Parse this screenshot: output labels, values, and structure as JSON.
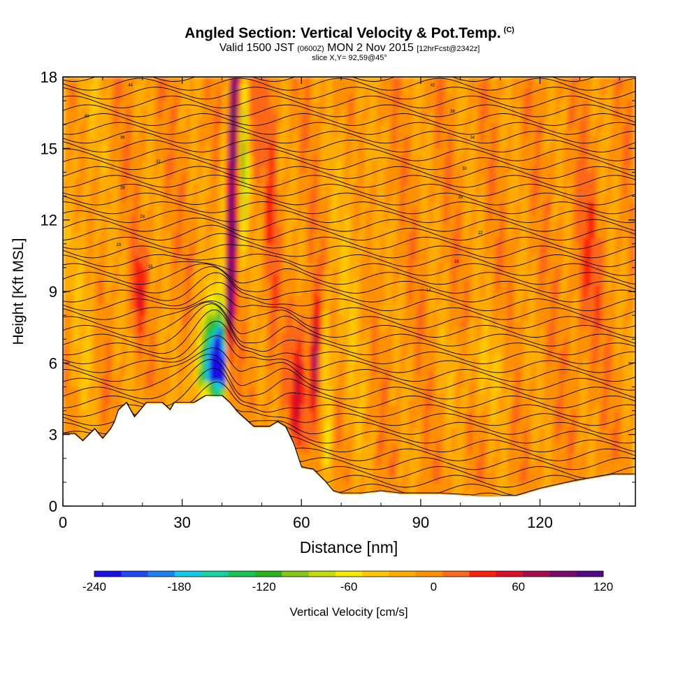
{
  "header": {
    "title": "Angled Section: Vertical Velocity & Pot.Temp.",
    "copyright": "(C)",
    "valid_prefix": "Valid 1500 JST",
    "valid_utc": "(0600Z)",
    "valid_date": "MON 2 Nov 2015",
    "forecast": "[12hrFcst@2342z]",
    "slice": "slice X,Y= 92,59@45°"
  },
  "chart_data": {
    "type": "heatmap",
    "xlabel": "Distance [nm]",
    "ylabel": "Height [Kft MSL]",
    "xlim": [
      0,
      144
    ],
    "ylim": [
      0,
      18
    ],
    "xticks": [
      0,
      30,
      60,
      90,
      120
    ],
    "yticks": [
      0,
      3,
      6,
      9,
      12,
      15,
      18
    ],
    "colorbar": {
      "label": "Vertical Velocity [cm/s]",
      "ticks": [
        -240,
        -180,
        -120,
        -60,
        0,
        60,
        120
      ],
      "levels": [
        -240,
        -220,
        -200,
        -180,
        -160,
        -140,
        -120,
        -100,
        -80,
        -60,
        -40,
        -20,
        0,
        20,
        40,
        60,
        80,
        100,
        120
      ],
      "colors": [
        "#1a0fe6",
        "#1c4cf0",
        "#1a82f4",
        "#14c8e8",
        "#18d2a2",
        "#18c454",
        "#28b41a",
        "#84c814",
        "#c4dc0c",
        "#f4ec00",
        "#ffc800",
        "#ffac00",
        "#ff9000",
        "#ff6818",
        "#ff2010",
        "#d8102c",
        "#a80c4c",
        "#7a0a6a",
        "#520a86"
      ]
    },
    "features": [
      {
        "name": "updraft core",
        "x": 42,
        "y_range": [
          4.5,
          18
        ],
        "w_max": 120
      },
      {
        "name": "downdraft core",
        "x": 39,
        "y_range": [
          4.5,
          8
        ],
        "w_min": -240
      },
      {
        "name": "secondary updraft",
        "x": 62,
        "y_range": [
          2.5,
          8
        ],
        "w_max": 80
      }
    ],
    "terrain": [
      [
        0,
        3.0
      ],
      [
        3,
        3.0
      ],
      [
        5,
        2.7
      ],
      [
        8,
        3.2
      ],
      [
        10,
        2.8
      ],
      [
        12,
        3.2
      ],
      [
        13,
        3.5
      ],
      [
        14,
        4.0
      ],
      [
        16,
        4.3
      ],
      [
        18,
        3.7
      ],
      [
        21,
        4.3
      ],
      [
        25,
        4.3
      ],
      [
        27,
        4.0
      ],
      [
        28,
        4.3
      ],
      [
        33,
        4.3
      ],
      [
        36,
        4.6
      ],
      [
        40,
        4.6
      ],
      [
        42,
        4.3
      ],
      [
        44,
        3.9
      ],
      [
        46,
        3.6
      ],
      [
        48,
        3.3
      ],
      [
        50,
        3.3
      ],
      [
        52,
        3.3
      ],
      [
        54,
        3.5
      ],
      [
        56,
        3.3
      ],
      [
        58,
        2.6
      ],
      [
        60,
        1.6
      ],
      [
        63,
        1.5
      ],
      [
        66,
        1.0
      ],
      [
        68,
        0.6
      ],
      [
        70,
        0.5
      ],
      [
        75,
        0.5
      ],
      [
        80,
        0.6
      ],
      [
        85,
        0.5
      ],
      [
        95,
        0.5
      ],
      [
        105,
        0.4
      ],
      [
        114,
        0.4
      ],
      [
        120,
        0.7
      ],
      [
        128,
        1.0
      ],
      [
        138,
        1.3
      ],
      [
        144,
        1.3
      ]
    ],
    "isentrope_labels": [
      "44",
      "42",
      "40",
      "38",
      "36",
      "34",
      "32",
      "30",
      "28",
      "26",
      "24",
      "22",
      "20",
      "18",
      "16",
      "14"
    ]
  }
}
